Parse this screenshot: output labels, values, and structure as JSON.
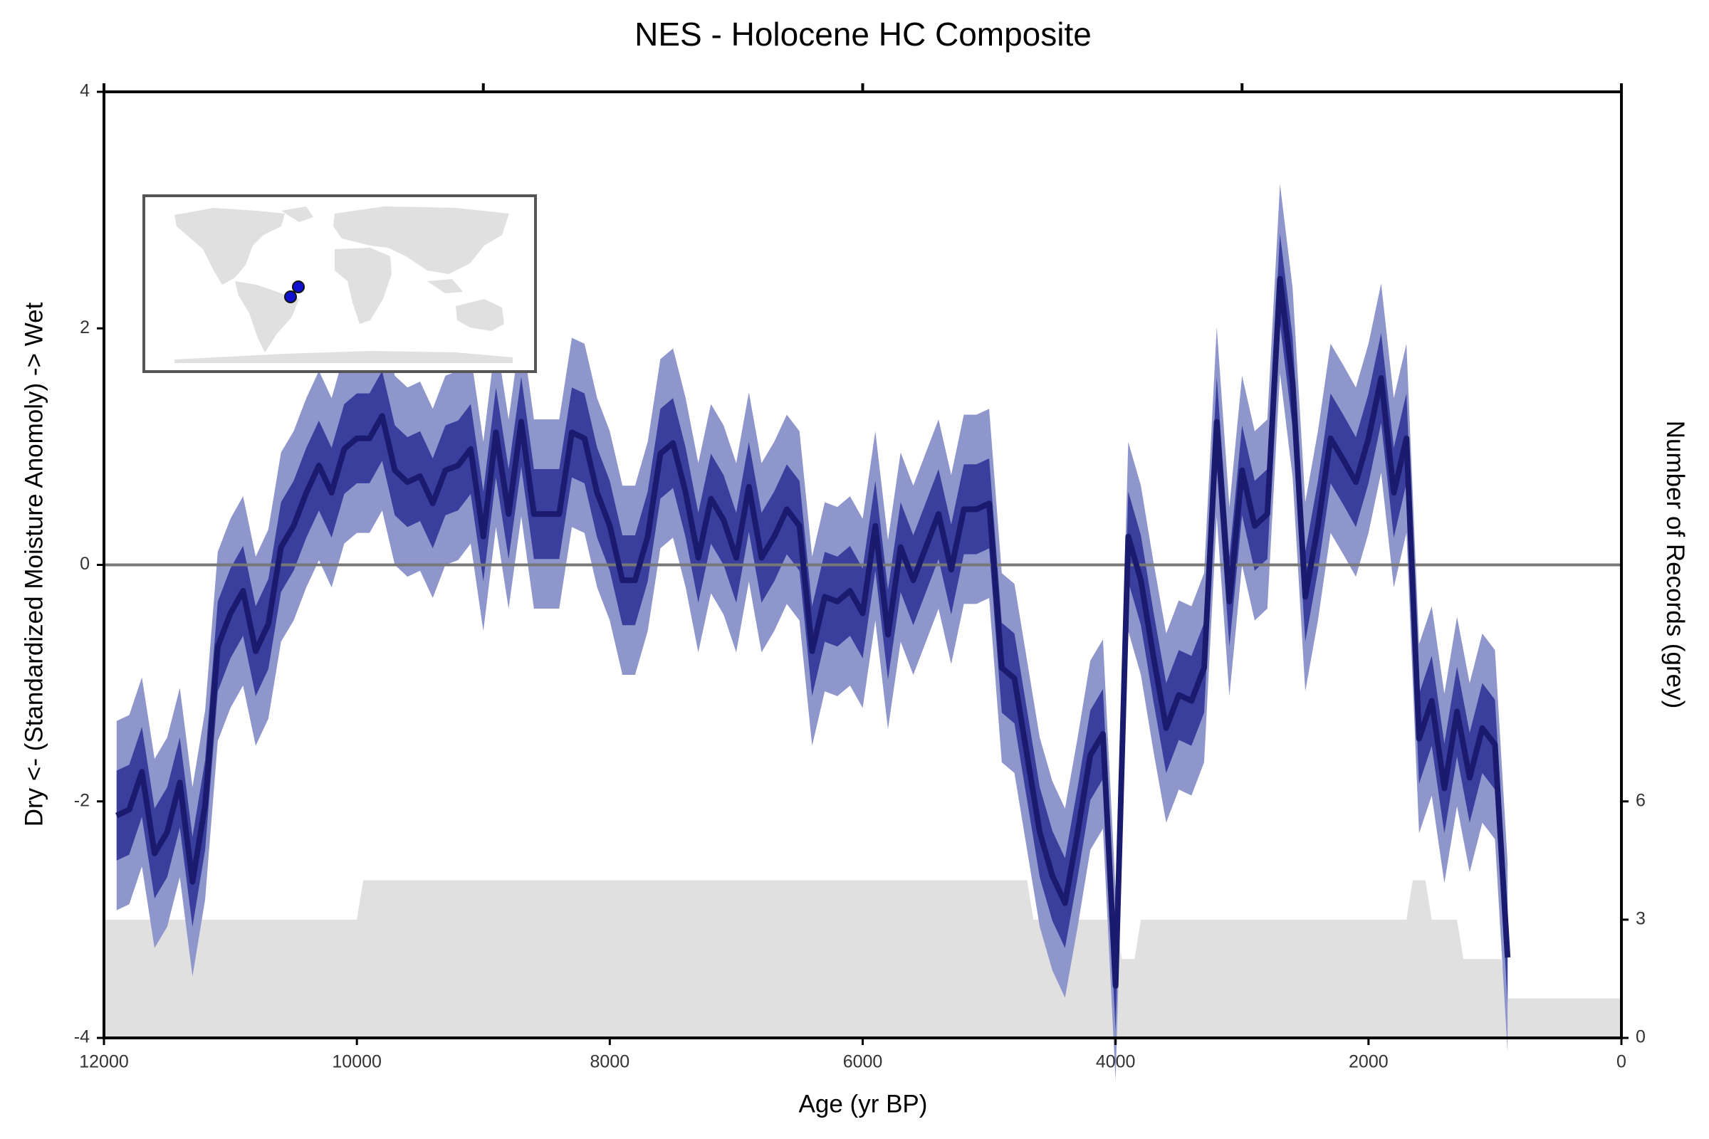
{
  "chart_data": {
    "type": "line",
    "title": "NES - Holocene HC Composite",
    "xlabel": "Age (yr BP)",
    "ylabel": "Dry <- (Standardized Moisture Anomoly) -> Wet",
    "y2label": "Number of Records (grey)",
    "x": [
      11900,
      11800,
      11700,
      11600,
      11500,
      11400,
      11300,
      11200,
      11100,
      11000,
      10900,
      10800,
      10700,
      10600,
      10500,
      10400,
      10300,
      10200,
      10100,
      10000,
      9900,
      9800,
      9700,
      9600,
      9500,
      9400,
      9300,
      9200,
      9100,
      9000,
      8900,
      8800,
      8700,
      8600,
      8500,
      8400,
      8300,
      8200,
      8100,
      8000,
      7900,
      7800,
      7700,
      7600,
      7500,
      7400,
      7300,
      7200,
      7100,
      7000,
      6900,
      6800,
      6700,
      6600,
      6500,
      6400,
      6300,
      6200,
      6100,
      6000,
      5900,
      5800,
      5700,
      5600,
      5500,
      5400,
      5300,
      5200,
      5100,
      5000,
      4900,
      4800,
      4700,
      4600,
      4500,
      4400,
      4300,
      4200,
      4100,
      4000,
      3900,
      3800,
      3700,
      3600,
      3500,
      3400,
      3300,
      3200,
      3100,
      3000,
      2900,
      2800,
      2700,
      2600,
      2500,
      2400,
      2300,
      2200,
      2100,
      2000,
      1900,
      1800,
      1700,
      1600,
      1500,
      1400,
      1300,
      1200,
      1100,
      1000,
      900
    ],
    "series": [
      {
        "color": "#1a1a6e",
        "values": [
          -2.12,
          -2.07,
          -1.75,
          -2.44,
          -2.26,
          -1.84,
          -2.68,
          -2.03,
          -0.69,
          -0.41,
          -0.22,
          -0.73,
          -0.5,
          0.15,
          0.33,
          0.61,
          0.84,
          0.61,
          0.98,
          1.07,
          1.07,
          1.26,
          0.8,
          0.7,
          0.75,
          0.52,
          0.8,
          0.84,
          0.98,
          0.24,
          1.12,
          0.43,
          1.21,
          0.43,
          0.43,
          0.43,
          1.12,
          1.07,
          0.61,
          0.33,
          -0.13,
          -0.13,
          0.24,
          0.94,
          1.03,
          0.61,
          0.06,
          0.56,
          0.38,
          0.06,
          0.66,
          0.06,
          0.24,
          0.47,
          0.33,
          -0.73,
          -0.27,
          -0.31,
          -0.22,
          -0.41,
          0.33,
          -0.59,
          0.15,
          -0.13,
          0.15,
          0.43,
          -0.04,
          0.47,
          0.47,
          0.52,
          -0.87,
          -0.96,
          -1.61,
          -2.26,
          -2.63,
          -2.86,
          -2.26,
          -1.61,
          -1.43,
          -3.56,
          0.24,
          -0.13,
          -0.78,
          -1.38,
          -1.1,
          -1.15,
          -0.87,
          1.21,
          -0.31,
          0.8,
          0.33,
          0.43,
          2.42,
          1.54,
          -0.27,
          0.33,
          1.07,
          0.89,
          0.7,
          1.07,
          1.58,
          0.61,
          1.07,
          -1.47,
          -1.15,
          -1.89,
          -1.24,
          -1.8,
          -1.38,
          -1.52,
          -3.32
        ],
        "bands": [
          {
            "color": "#8e96cc",
            "error": 0.8
          },
          {
            "color": "#3a3f9e",
            "error": 0.38
          }
        ]
      }
    ],
    "records": {
      "axis": "y2",
      "color": "#e0e0e0",
      "x": [
        12000,
        10000,
        9950,
        4700,
        4650,
        4000,
        3950,
        3850,
        3800,
        1700,
        1650,
        1550,
        1500,
        1300,
        1250,
        950,
        900,
        0
      ],
      "values": [
        3,
        3,
        4,
        4,
        3,
        3,
        2,
        2,
        3,
        3,
        4,
        4,
        3,
        3,
        2,
        2,
        1,
        1
      ]
    },
    "xlim": [
      12000,
      0
    ],
    "ylim": [
      -4,
      4
    ],
    "y2lim": [
      0,
      24
    ],
    "xticks": [
      12000,
      10000,
      8000,
      6000,
      4000,
      2000,
      0
    ],
    "xticks_top": [
      12000,
      9000,
      6000,
      3000,
      0
    ],
    "yticks": [
      -4,
      -2,
      0,
      2,
      4
    ],
    "y2ticks": [
      0,
      3,
      6
    ],
    "hline": 0
  }
}
